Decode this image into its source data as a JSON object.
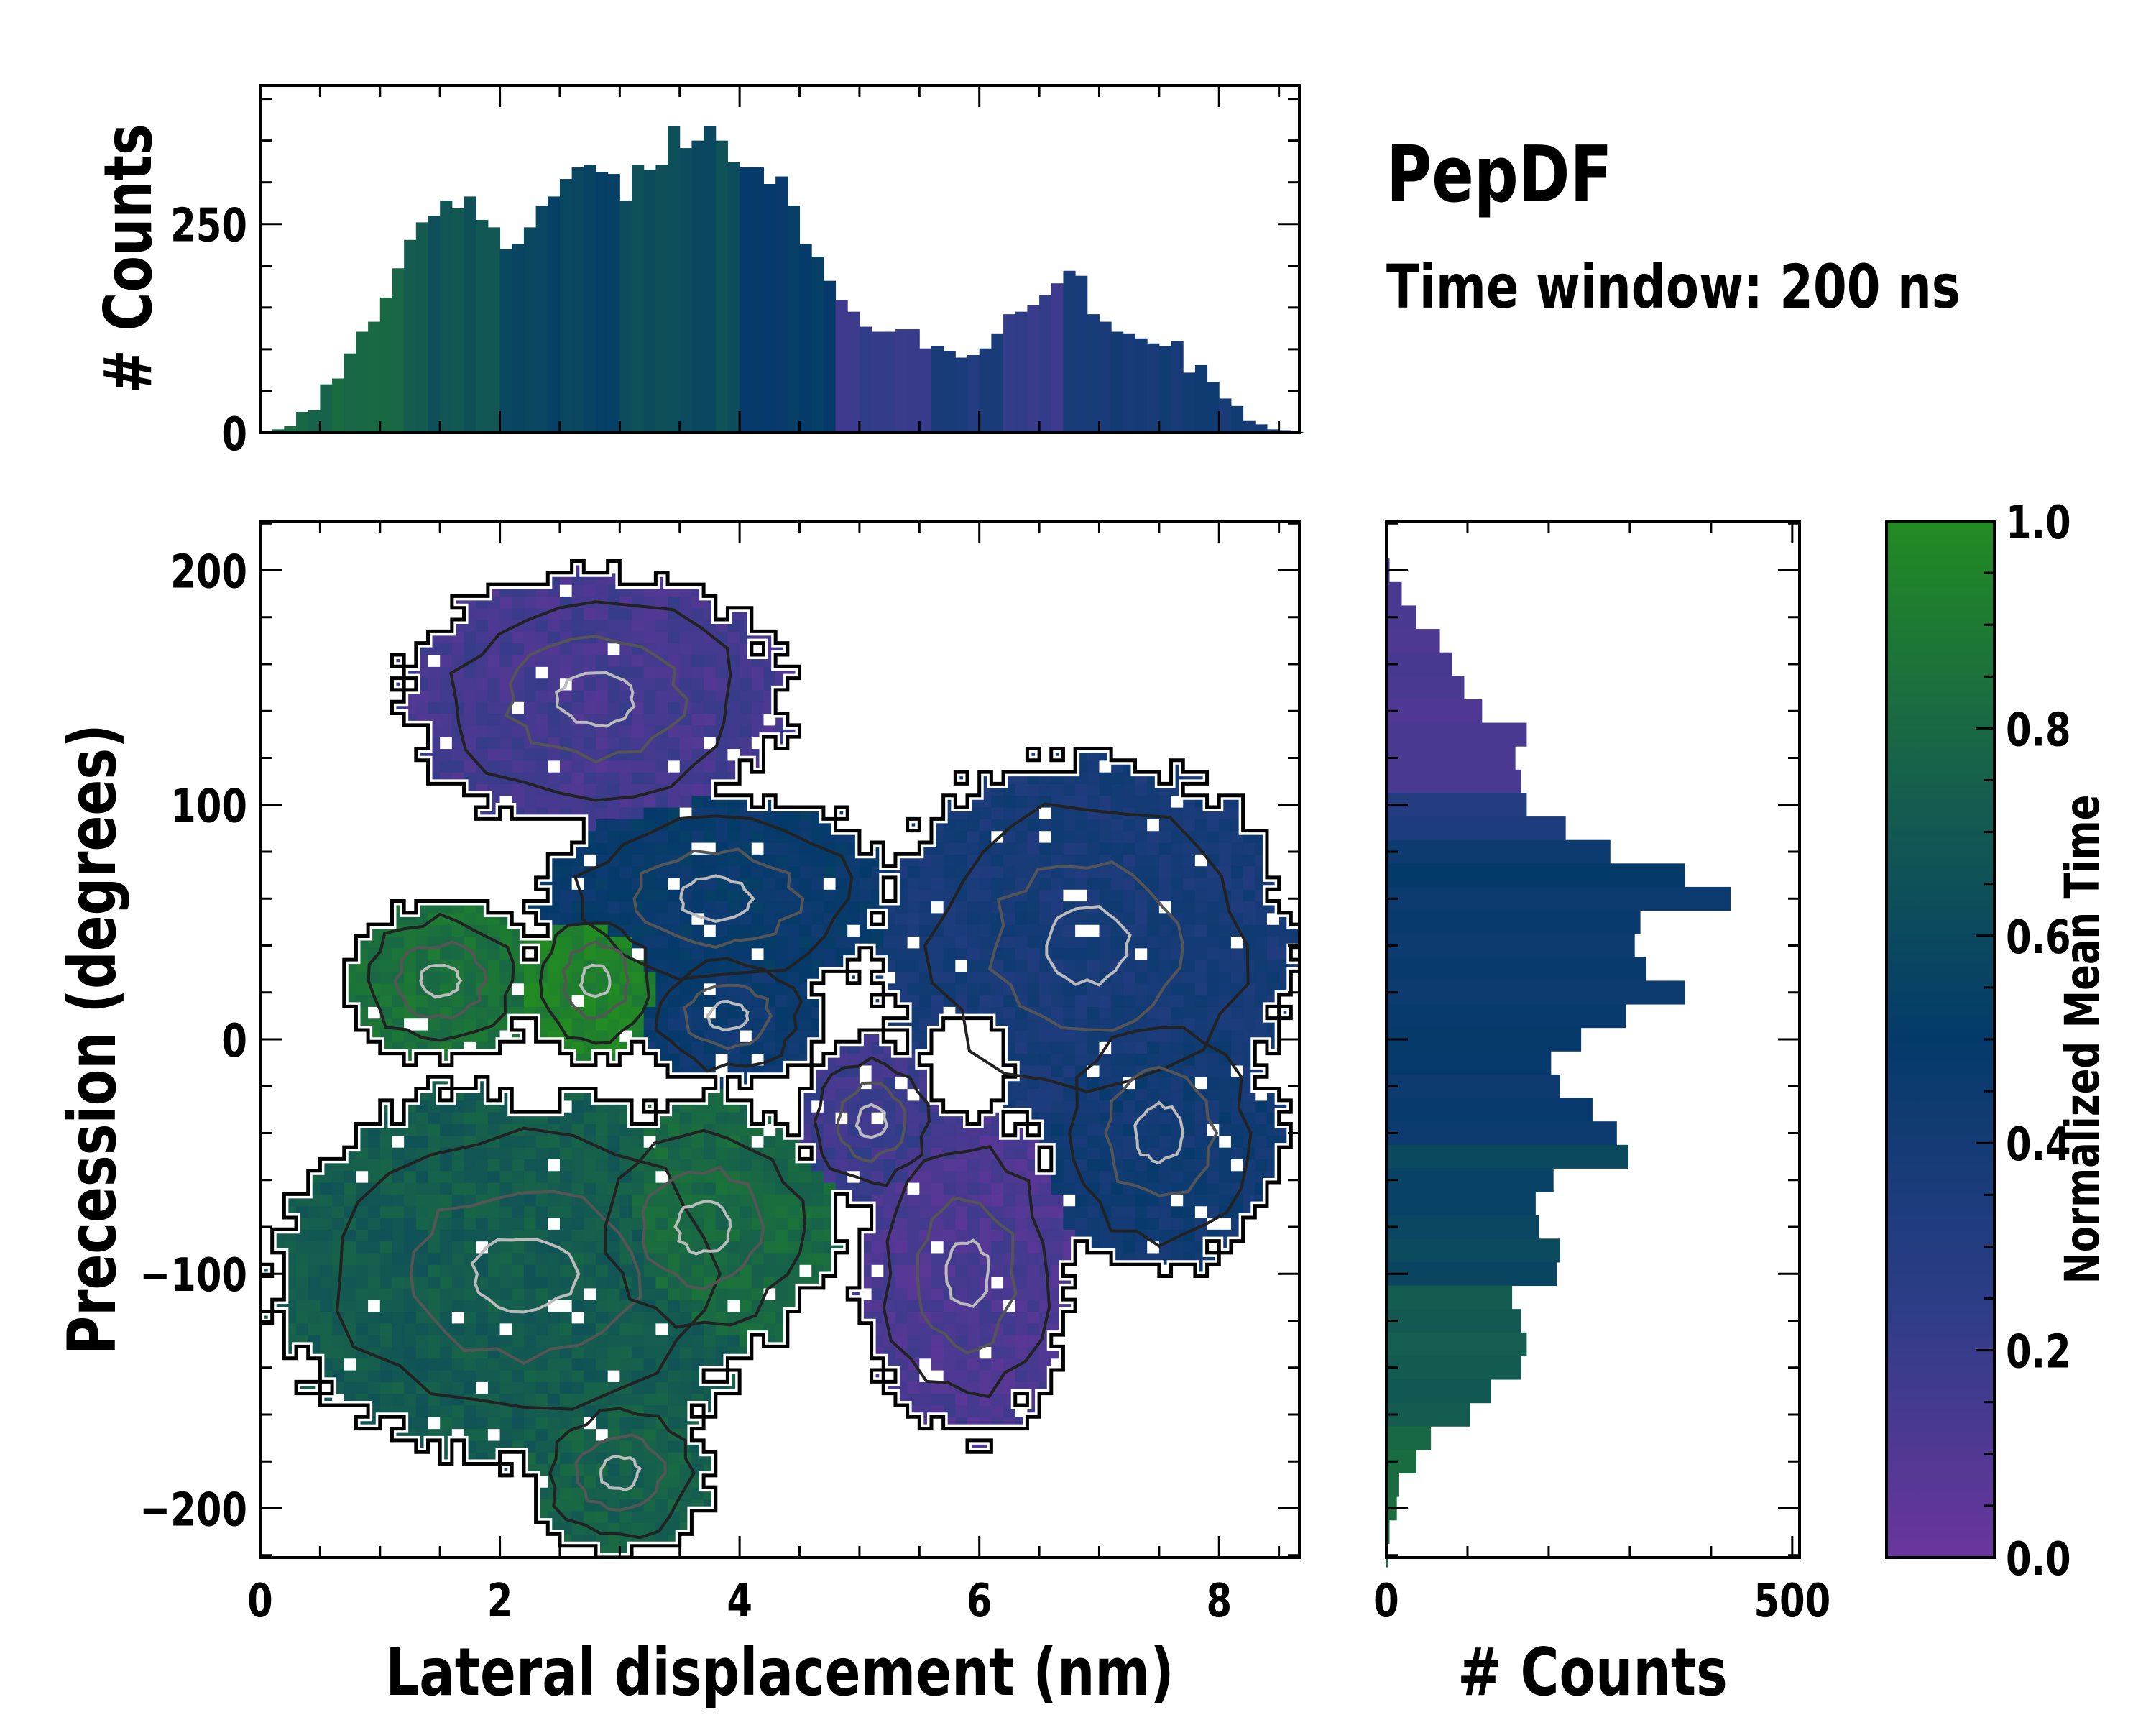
{
  "title": "PepDF",
  "subtitle": "Time window: 200 ns",
  "colors": {
    "colormap": [
      "#6a359c",
      "#2b3d86",
      "#043a6a",
      "#16604c",
      "#228b22"
    ],
    "outline": "#000000",
    "contour_dark": "#222222",
    "contour_light": "#bbbbbb"
  },
  "chart_data": [
    {
      "type": "bar",
      "name": "top-marginal-histogram",
      "xlabel": "",
      "ylabel": "# Counts",
      "xlim": [
        0,
        8.67
      ],
      "ylim": [
        0,
        416
      ],
      "yticks": [
        0,
        250
      ],
      "bin_width": 0.1,
      "x_start": 0,
      "values": [
        2,
        4,
        8,
        25,
        27,
        58,
        65,
        95,
        121,
        133,
        162,
        197,
        231,
        252,
        260,
        278,
        269,
        283,
        255,
        246,
        220,
        226,
        246,
        272,
        283,
        304,
        318,
        321,
        312,
        310,
        278,
        321,
        315,
        321,
        367,
        341,
        350,
        367,
        350,
        324,
        318,
        318,
        298,
        307,
        272,
        226,
        211,
        182,
        159,
        145,
        127,
        121,
        121,
        124,
        124,
        101,
        104,
        98,
        90,
        93,
        101,
        119,
        142,
        145,
        153,
        165,
        179,
        194,
        188,
        142,
        133,
        121,
        119,
        113,
        107,
        104,
        110,
        72,
        81,
        61,
        41,
        32,
        14,
        10,
        4,
        3,
        1
      ],
      "mean_time_segments": [
        [
          0,
          0.8
        ],
        [
          1.2,
          0.68
        ],
        [
          2.0,
          0.55
        ],
        [
          3.0,
          0.62
        ],
        [
          4.0,
          0.5
        ],
        [
          4.8,
          0.2
        ],
        [
          5.6,
          0.35
        ],
        [
          6.2,
          0.2
        ],
        [
          6.7,
          0.4
        ]
      ]
    },
    {
      "type": "heatmap",
      "name": "main-2d-distribution",
      "xlabel": "Lateral displacement (nm)",
      "ylabel": "Precession (degrees)",
      "xlim": [
        0,
        8.67
      ],
      "ylim": [
        -221,
        221
      ],
      "xticks": [
        0,
        2,
        4,
        6,
        8
      ],
      "yticks": [
        -200,
        -100,
        0,
        100,
        200
      ],
      "ytick_labels": [
        "−200",
        "−100",
        "0",
        "100",
        "200"
      ],
      "cell": [
        0.1,
        5
      ],
      "regions": [
        {
          "cx": 2.8,
          "cy": 145,
          "rx": 1.6,
          "ry": 55,
          "t": 0.15
        },
        {
          "cx": 3.8,
          "cy": 60,
          "rx": 1.5,
          "ry": 45,
          "t": 0.48
        },
        {
          "cx": 6.9,
          "cy": 40,
          "rx": 1.75,
          "ry": 80,
          "t": 0.38
        },
        {
          "cx": 7.5,
          "cy": -40,
          "rx": 1.0,
          "ry": 60,
          "t": 0.42
        },
        {
          "cx": 5.9,
          "cy": -100,
          "rx": 0.9,
          "ry": 70,
          "t": 0.12
        },
        {
          "cx": 5.1,
          "cy": -35,
          "rx": 0.6,
          "ry": 35,
          "t": 0.18
        },
        {
          "cx": 1.5,
          "cy": 25,
          "rx": 0.8,
          "ry": 35,
          "t": 0.85
        },
        {
          "cx": 2.8,
          "cy": 25,
          "rx": 0.6,
          "ry": 35,
          "t": 0.95
        },
        {
          "cx": 2.2,
          "cy": -100,
          "rx": 2.1,
          "ry": 80,
          "t": 0.72
        },
        {
          "cx": 3.7,
          "cy": -80,
          "rx": 1.1,
          "ry": 55,
          "t": 0.8
        },
        {
          "cx": 3.0,
          "cy": -185,
          "rx": 0.8,
          "ry": 35,
          "t": 0.75
        },
        {
          "cx": 3.9,
          "cy": 10,
          "rx": 0.8,
          "ry": 30,
          "t": 0.45
        }
      ],
      "holes": [
        {
          "cx": 5.9,
          "cy": -10,
          "rx": 0.35,
          "ry": 20
        },
        {
          "cx": 2.3,
          "cy": -15,
          "rx": 0.25,
          "ry": 18
        }
      ]
    },
    {
      "type": "bar",
      "orientation": "horizontal",
      "name": "right-marginal-histogram",
      "xlabel": "# Counts",
      "xlim": [
        0,
        509
      ],
      "xticks": [
        0,
        500
      ],
      "ylim": [
        -221,
        221
      ],
      "bin_width": 10,
      "y_start": 200,
      "values": [
        4,
        19,
        37,
        66,
        81,
        96,
        118,
        173,
        159,
        166,
        173,
        221,
        276,
        368,
        424,
        313,
        306,
        320,
        368,
        295,
        240,
        203,
        214,
        254,
        284,
        298,
        206,
        184,
        188,
        214,
        210,
        155,
        166,
        173,
        166,
        129,
        103,
        55,
        37,
        15,
        13,
        4,
        2
      ],
      "mean_time_segments": [
        [
          200,
          0.13
        ],
        [
          110,
          0.33
        ],
        [
          90,
          0.47
        ],
        [
          -40,
          0.58
        ],
        [
          -100,
          0.72
        ],
        [
          -160,
          0.8
        ]
      ]
    },
    {
      "type": "colorbar",
      "label": "Normalized Mean Time",
      "range": [
        0,
        1
      ],
      "ticks": [
        "0.0",
        "0.2",
        "0.4",
        "0.6",
        "0.8",
        "1.0"
      ]
    }
  ]
}
